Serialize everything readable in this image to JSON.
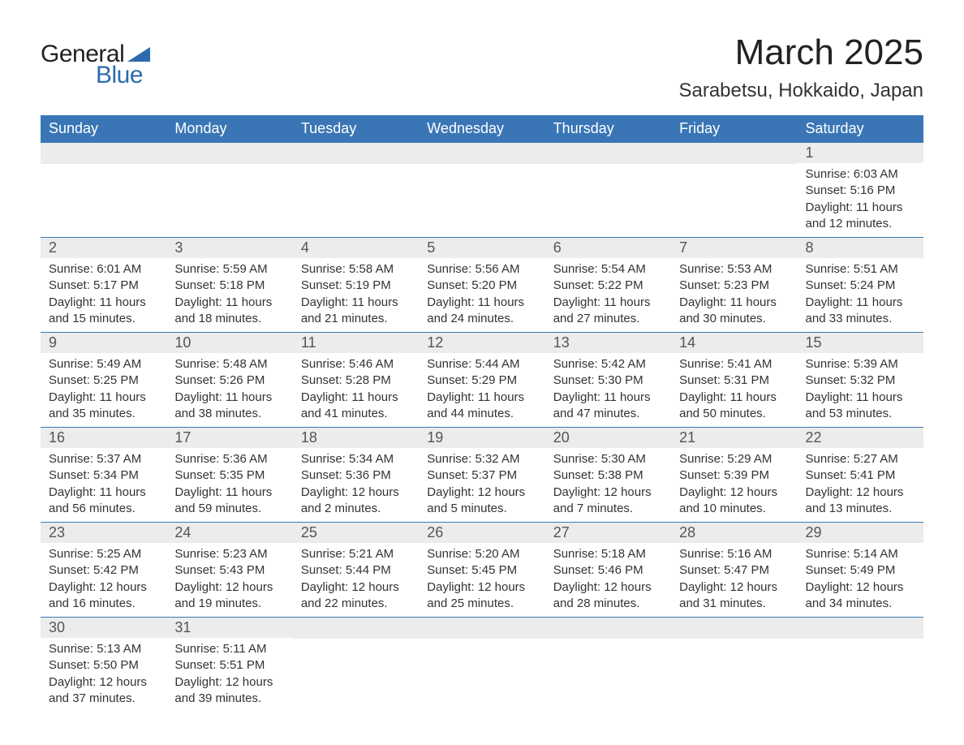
{
  "logo": {
    "text_general": "General",
    "text_blue": "Blue",
    "color_general": "#222222",
    "color_blue": "#2d6aad",
    "shape_color": "#2d6aad"
  },
  "title": {
    "month": "March 2025",
    "location": "Sarabetsu, Hokkaido, Japan"
  },
  "colors": {
    "header_bg": "#3a76b6",
    "header_text": "#ffffff",
    "daynum_bg": "#ececec",
    "daynum_text": "#555555",
    "body_text": "#333333",
    "row_border": "#3a76b6",
    "background": "#ffffff"
  },
  "day_headers": [
    "Sunday",
    "Monday",
    "Tuesday",
    "Wednesday",
    "Thursday",
    "Friday",
    "Saturday"
  ],
  "weeks": [
    [
      null,
      null,
      null,
      null,
      null,
      null,
      {
        "num": "1",
        "sunrise": "Sunrise: 6:03 AM",
        "sunset": "Sunset: 5:16 PM",
        "daylight1": "Daylight: 11 hours",
        "daylight2": "and 12 minutes."
      }
    ],
    [
      {
        "num": "2",
        "sunrise": "Sunrise: 6:01 AM",
        "sunset": "Sunset: 5:17 PM",
        "daylight1": "Daylight: 11 hours",
        "daylight2": "and 15 minutes."
      },
      {
        "num": "3",
        "sunrise": "Sunrise: 5:59 AM",
        "sunset": "Sunset: 5:18 PM",
        "daylight1": "Daylight: 11 hours",
        "daylight2": "and 18 minutes."
      },
      {
        "num": "4",
        "sunrise": "Sunrise: 5:58 AM",
        "sunset": "Sunset: 5:19 PM",
        "daylight1": "Daylight: 11 hours",
        "daylight2": "and 21 minutes."
      },
      {
        "num": "5",
        "sunrise": "Sunrise: 5:56 AM",
        "sunset": "Sunset: 5:20 PM",
        "daylight1": "Daylight: 11 hours",
        "daylight2": "and 24 minutes."
      },
      {
        "num": "6",
        "sunrise": "Sunrise: 5:54 AM",
        "sunset": "Sunset: 5:22 PM",
        "daylight1": "Daylight: 11 hours",
        "daylight2": "and 27 minutes."
      },
      {
        "num": "7",
        "sunrise": "Sunrise: 5:53 AM",
        "sunset": "Sunset: 5:23 PM",
        "daylight1": "Daylight: 11 hours",
        "daylight2": "and 30 minutes."
      },
      {
        "num": "8",
        "sunrise": "Sunrise: 5:51 AM",
        "sunset": "Sunset: 5:24 PM",
        "daylight1": "Daylight: 11 hours",
        "daylight2": "and 33 minutes."
      }
    ],
    [
      {
        "num": "9",
        "sunrise": "Sunrise: 5:49 AM",
        "sunset": "Sunset: 5:25 PM",
        "daylight1": "Daylight: 11 hours",
        "daylight2": "and 35 minutes."
      },
      {
        "num": "10",
        "sunrise": "Sunrise: 5:48 AM",
        "sunset": "Sunset: 5:26 PM",
        "daylight1": "Daylight: 11 hours",
        "daylight2": "and 38 minutes."
      },
      {
        "num": "11",
        "sunrise": "Sunrise: 5:46 AM",
        "sunset": "Sunset: 5:28 PM",
        "daylight1": "Daylight: 11 hours",
        "daylight2": "and 41 minutes."
      },
      {
        "num": "12",
        "sunrise": "Sunrise: 5:44 AM",
        "sunset": "Sunset: 5:29 PM",
        "daylight1": "Daylight: 11 hours",
        "daylight2": "and 44 minutes."
      },
      {
        "num": "13",
        "sunrise": "Sunrise: 5:42 AM",
        "sunset": "Sunset: 5:30 PM",
        "daylight1": "Daylight: 11 hours",
        "daylight2": "and 47 minutes."
      },
      {
        "num": "14",
        "sunrise": "Sunrise: 5:41 AM",
        "sunset": "Sunset: 5:31 PM",
        "daylight1": "Daylight: 11 hours",
        "daylight2": "and 50 minutes."
      },
      {
        "num": "15",
        "sunrise": "Sunrise: 5:39 AM",
        "sunset": "Sunset: 5:32 PM",
        "daylight1": "Daylight: 11 hours",
        "daylight2": "and 53 minutes."
      }
    ],
    [
      {
        "num": "16",
        "sunrise": "Sunrise: 5:37 AM",
        "sunset": "Sunset: 5:34 PM",
        "daylight1": "Daylight: 11 hours",
        "daylight2": "and 56 minutes."
      },
      {
        "num": "17",
        "sunrise": "Sunrise: 5:36 AM",
        "sunset": "Sunset: 5:35 PM",
        "daylight1": "Daylight: 11 hours",
        "daylight2": "and 59 minutes."
      },
      {
        "num": "18",
        "sunrise": "Sunrise: 5:34 AM",
        "sunset": "Sunset: 5:36 PM",
        "daylight1": "Daylight: 12 hours",
        "daylight2": "and 2 minutes."
      },
      {
        "num": "19",
        "sunrise": "Sunrise: 5:32 AM",
        "sunset": "Sunset: 5:37 PM",
        "daylight1": "Daylight: 12 hours",
        "daylight2": "and 5 minutes."
      },
      {
        "num": "20",
        "sunrise": "Sunrise: 5:30 AM",
        "sunset": "Sunset: 5:38 PM",
        "daylight1": "Daylight: 12 hours",
        "daylight2": "and 7 minutes."
      },
      {
        "num": "21",
        "sunrise": "Sunrise: 5:29 AM",
        "sunset": "Sunset: 5:39 PM",
        "daylight1": "Daylight: 12 hours",
        "daylight2": "and 10 minutes."
      },
      {
        "num": "22",
        "sunrise": "Sunrise: 5:27 AM",
        "sunset": "Sunset: 5:41 PM",
        "daylight1": "Daylight: 12 hours",
        "daylight2": "and 13 minutes."
      }
    ],
    [
      {
        "num": "23",
        "sunrise": "Sunrise: 5:25 AM",
        "sunset": "Sunset: 5:42 PM",
        "daylight1": "Daylight: 12 hours",
        "daylight2": "and 16 minutes."
      },
      {
        "num": "24",
        "sunrise": "Sunrise: 5:23 AM",
        "sunset": "Sunset: 5:43 PM",
        "daylight1": "Daylight: 12 hours",
        "daylight2": "and 19 minutes."
      },
      {
        "num": "25",
        "sunrise": "Sunrise: 5:21 AM",
        "sunset": "Sunset: 5:44 PM",
        "daylight1": "Daylight: 12 hours",
        "daylight2": "and 22 minutes."
      },
      {
        "num": "26",
        "sunrise": "Sunrise: 5:20 AM",
        "sunset": "Sunset: 5:45 PM",
        "daylight1": "Daylight: 12 hours",
        "daylight2": "and 25 minutes."
      },
      {
        "num": "27",
        "sunrise": "Sunrise: 5:18 AM",
        "sunset": "Sunset: 5:46 PM",
        "daylight1": "Daylight: 12 hours",
        "daylight2": "and 28 minutes."
      },
      {
        "num": "28",
        "sunrise": "Sunrise: 5:16 AM",
        "sunset": "Sunset: 5:47 PM",
        "daylight1": "Daylight: 12 hours",
        "daylight2": "and 31 minutes."
      },
      {
        "num": "29",
        "sunrise": "Sunrise: 5:14 AM",
        "sunset": "Sunset: 5:49 PM",
        "daylight1": "Daylight: 12 hours",
        "daylight2": "and 34 minutes."
      }
    ],
    [
      {
        "num": "30",
        "sunrise": "Sunrise: 5:13 AM",
        "sunset": "Sunset: 5:50 PM",
        "daylight1": "Daylight: 12 hours",
        "daylight2": "and 37 minutes."
      },
      {
        "num": "31",
        "sunrise": "Sunrise: 5:11 AM",
        "sunset": "Sunset: 5:51 PM",
        "daylight1": "Daylight: 12 hours",
        "daylight2": "and 39 minutes."
      },
      null,
      null,
      null,
      null,
      null
    ]
  ]
}
